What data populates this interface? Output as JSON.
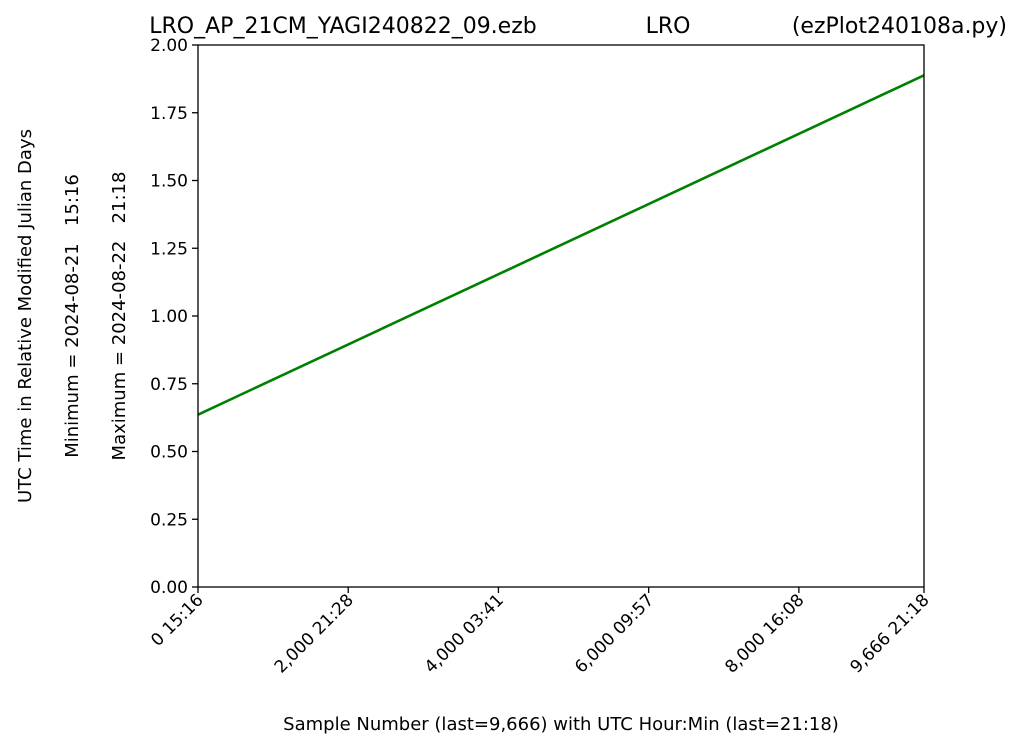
{
  "chart_data": {
    "type": "line",
    "title": {
      "file": "LRO_AP_21CM_YAGI240822_09.ezb",
      "station": "LRO",
      "program": "(ezPlot240108a.py)"
    },
    "xlabel": "Sample Number (last=9,666) with UTC Hour:Min (last=21:18)",
    "ylabel": "UTC Time in Relative Modified Julian Days",
    "ylabel_min": "Minimum = 2024-08-21   15:16",
    "ylabel_max": "Maximum = 2024-08-22   21:18",
    "xlim": [
      0,
      9666
    ],
    "ylim": [
      0,
      2
    ],
    "xticks": [
      {
        "value": 0,
        "label": "0  15:16"
      },
      {
        "value": 2000,
        "label": "2,000  21:28"
      },
      {
        "value": 4000,
        "label": "4,000  03:41"
      },
      {
        "value": 6000,
        "label": "6,000  09:57"
      },
      {
        "value": 8000,
        "label": "8,000  16:08"
      },
      {
        "value": 9666,
        "label": "9,666  21:18"
      }
    ],
    "yticks": [
      {
        "value": 0,
        "label": "0.00"
      },
      {
        "value": 0.25,
        "label": "0.25"
      },
      {
        "value": 0.5,
        "label": "0.50"
      },
      {
        "value": 0.75,
        "label": "0.75"
      },
      {
        "value": 1.0,
        "label": "1.00"
      },
      {
        "value": 1.25,
        "label": "1.25"
      },
      {
        "value": 1.5,
        "label": "1.50"
      },
      {
        "value": 1.75,
        "label": "1.75"
      },
      {
        "value": 2.0,
        "label": "2.00"
      }
    ],
    "grid": false,
    "series": [
      {
        "color": "#008000",
        "x": [
          0,
          9666
        ],
        "y": [
          0.636,
          1.888
        ]
      }
    ]
  }
}
